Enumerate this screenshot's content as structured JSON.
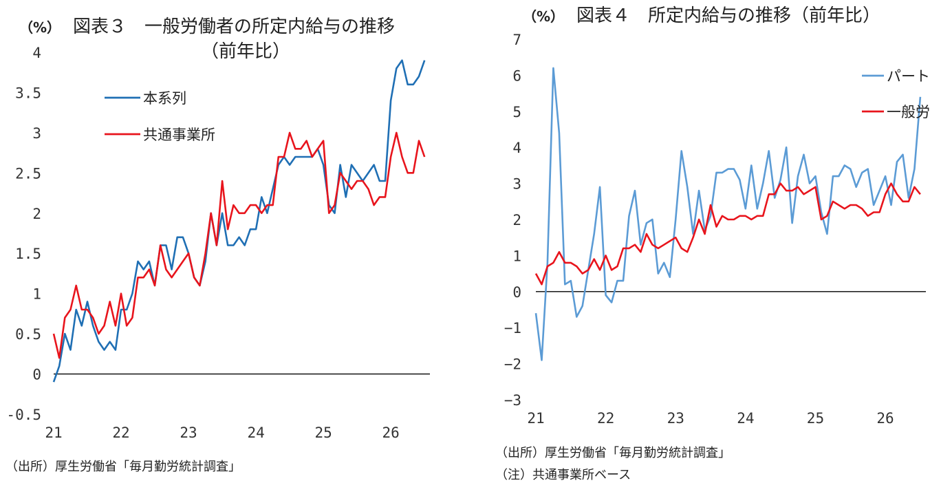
{
  "charts": [
    {
      "type": "line",
      "unit": "（%）",
      "title": "図表３　一般労働者の所定内給与の推移",
      "subtitle": "（前年比）",
      "source": "（出所）厚生労働省「毎月勤労統計調査」",
      "xlim": [
        21,
        26.58
      ],
      "ylim": [
        -0.5,
        4
      ],
      "x_ticks": [
        "21",
        "22",
        "23",
        "24",
        "25",
        "26"
      ],
      "y_ticks": [
        "4",
        "3.5",
        "3",
        "2.5",
        "2",
        "1.5",
        "1",
        "0.5",
        "0",
        "-0.5"
      ],
      "legend_position": "upper-left",
      "series": [
        {
          "name": "本系列",
          "color": "#1f6fb4",
          "values": [
            -0.1,
            0.1,
            0.5,
            0.3,
            0.8,
            0.6,
            0.9,
            0.6,
            0.4,
            0.3,
            0.4,
            0.3,
            0.8,
            0.8,
            1.0,
            1.4,
            1.3,
            1.4,
            1.1,
            1.6,
            1.6,
            1.3,
            1.7,
            1.7,
            1.5,
            1.2,
            1.1,
            1.4,
            2.0,
            1.6,
            2.0,
            1.6,
            1.6,
            1.7,
            1.6,
            1.8,
            1.8,
            2.2,
            2.0,
            2.3,
            2.6,
            2.7,
            2.6,
            2.7,
            2.7,
            2.7,
            2.7,
            2.8,
            2.6,
            2.1,
            2.0,
            2.6,
            2.2,
            2.6,
            2.5,
            2.4,
            2.5,
            2.6,
            2.4,
            2.4,
            3.4,
            3.8,
            3.9,
            3.6,
            3.6,
            3.7,
            3.9
          ]
        },
        {
          "name": "共通事業所",
          "color": "#e8141c",
          "values": [
            0.5,
            0.2,
            0.7,
            0.8,
            1.1,
            0.8,
            0.8,
            0.7,
            0.5,
            0.6,
            0.9,
            0.6,
            1.0,
            0.6,
            0.7,
            1.2,
            1.2,
            1.3,
            1.1,
            1.6,
            1.3,
            1.2,
            1.3,
            1.4,
            1.5,
            1.2,
            1.1,
            1.5,
            2.0,
            1.6,
            2.4,
            1.8,
            2.1,
            2.0,
            2.0,
            2.1,
            2.1,
            2.0,
            2.1,
            2.1,
            2.7,
            2.7,
            3.0,
            2.8,
            2.8,
            2.9,
            2.7,
            2.8,
            2.9,
            2.0,
            2.1,
            2.5,
            2.4,
            2.3,
            2.4,
            2.4,
            2.3,
            2.1,
            2.2,
            2.2,
            2.7,
            3.0,
            2.7,
            2.5,
            2.5,
            2.9,
            2.7
          ]
        }
      ]
    },
    {
      "type": "line",
      "unit": "（%）",
      "title": "図表４　所定内給与の推移（前年比）",
      "source": "（出所）厚生労働省「毎月勤労統計調査」",
      "note": "（注）共通事業所ベース",
      "xlim": [
        21,
        26.58
      ],
      "ylim": [
        -3,
        7
      ],
      "x_ticks": [
        "21",
        "22",
        "23",
        "24",
        "25",
        "26"
      ],
      "y_ticks": [
        "7",
        "6",
        "5",
        "4",
        "3",
        "2",
        "1",
        "0",
        "−1",
        "−2",
        "−3"
      ],
      "legend_position": "upper-right",
      "series": [
        {
          "name": "パート労働者",
          "color": "#5b9bd5",
          "values": [
            -0.6,
            -1.9,
            0.8,
            6.2,
            4.4,
            0.2,
            0.3,
            -0.7,
            -0.4,
            0.6,
            1.6,
            2.9,
            -0.1,
            -0.3,
            0.3,
            0.3,
            2.1,
            2.8,
            1.3,
            1.9,
            2.0,
            0.5,
            0.8,
            0.4,
            2.0,
            3.9,
            2.9,
            1.6,
            2.8,
            1.7,
            2.1,
            3.3,
            3.3,
            3.4,
            3.4,
            3.1,
            2.3,
            3.5,
            2.3,
            3.0,
            3.9,
            2.6,
            3.1,
            4.0,
            1.9,
            3.2,
            3.8,
            3.0,
            3.2,
            2.2,
            1.6,
            3.2,
            3.2,
            3.5,
            3.4,
            2.9,
            3.3,
            3.4,
            2.4,
            2.8,
            3.2,
            2.4,
            3.6,
            3.8,
            2.6,
            3.4,
            5.4
          ]
        },
        {
          "name": "一般労働者",
          "color": "#e8141c",
          "values": [
            0.5,
            0.2,
            0.7,
            0.8,
            1.1,
            0.8,
            0.8,
            0.7,
            0.5,
            0.6,
            0.9,
            0.6,
            1.0,
            0.6,
            0.7,
            1.2,
            1.2,
            1.3,
            1.1,
            1.6,
            1.3,
            1.2,
            1.3,
            1.4,
            1.5,
            1.2,
            1.1,
            1.5,
            2.0,
            1.6,
            2.4,
            1.8,
            2.1,
            2.0,
            2.0,
            2.1,
            2.1,
            2.0,
            2.1,
            2.1,
            2.7,
            2.7,
            3.0,
            2.8,
            2.8,
            2.9,
            2.7,
            2.8,
            2.9,
            2.0,
            2.1,
            2.5,
            2.4,
            2.3,
            2.4,
            2.4,
            2.3,
            2.1,
            2.2,
            2.2,
            2.7,
            3.0,
            2.7,
            2.5,
            2.5,
            2.9,
            2.7
          ]
        }
      ]
    }
  ]
}
